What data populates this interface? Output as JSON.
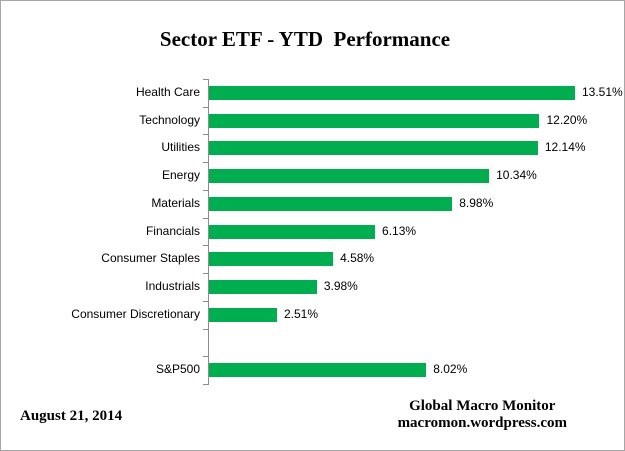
{
  "chart_data": {
    "type": "bar",
    "orientation": "horizontal",
    "title": "Sector ETF - YTD  Performance",
    "categories": [
      "Health Care",
      "Technology",
      "Utilities",
      "Energy",
      "Materials",
      "Financials",
      "Consumer Staples",
      "Industrials",
      "Consumer Discretionary",
      "",
      "S&P500"
    ],
    "values": [
      13.51,
      12.2,
      12.14,
      10.34,
      8.98,
      6.13,
      4.58,
      3.98,
      2.51,
      null,
      8.02
    ],
    "value_labels": [
      "13.51%",
      "12.20%",
      "12.14%",
      "10.34%",
      "8.98%",
      "6.13%",
      "4.58%",
      "3.98%",
      "2.51%",
      "",
      "8.02%"
    ],
    "xlim": [
      0,
      15.32
    ],
    "grid": false,
    "legend": false,
    "data_labels": true,
    "bar_color": "#00ae50",
    "axis_color": "#8c8c8c",
    "label_color": "#000000"
  },
  "footer": {
    "date": "August 21, 2014",
    "source_line1": "Global Macro Monitor",
    "source_line2": "macromon.wordpress.com"
  }
}
